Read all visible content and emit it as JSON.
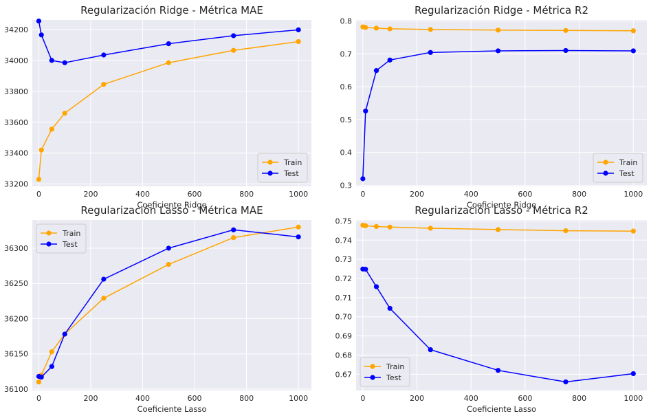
{
  "colors": {
    "train": "#ffa500",
    "test": "#0000ff",
    "background": "#eaeaf2",
    "grid": "#ffffff"
  },
  "chart_data": [
    {
      "type": "line",
      "title": "Regularización Ridge - Métrica MAE",
      "xlabel": "Coeficiente Ridge",
      "ylabel": "",
      "x": [
        0,
        10,
        50,
        100,
        250,
        500,
        750,
        1000
      ],
      "xlim": [
        -25,
        1050
      ],
      "ylim": [
        33185,
        34262
      ],
      "xticks": [
        0,
        200,
        400,
        600,
        800,
        1000
      ],
      "yticks": [
        33200,
        33400,
        33600,
        33800,
        34000,
        34200
      ],
      "ytick_decimals": 0,
      "legend": "lower right",
      "grid": true,
      "series": [
        {
          "name": "Train",
          "values": [
            33230,
            33420,
            33555,
            33658,
            33845,
            33985,
            34065,
            34122
          ]
        },
        {
          "name": "Test",
          "values": [
            34255,
            34165,
            34000,
            33985,
            34035,
            34108,
            34160,
            34198
          ]
        }
      ]
    },
    {
      "type": "line",
      "title": "Regularización Ridge - Métrica R2",
      "xlabel": "Coeficiente Ridge",
      "ylabel": "",
      "x": [
        0,
        10,
        50,
        100,
        250,
        500,
        750,
        1000
      ],
      "xlim": [
        -25,
        1050
      ],
      "ylim": [
        0.297,
        0.803
      ],
      "xticks": [
        0,
        200,
        400,
        600,
        800,
        1000
      ],
      "yticks": [
        0.3,
        0.4,
        0.5,
        0.6,
        0.7,
        0.8
      ],
      "ytick_decimals": 1,
      "legend": "lower right",
      "grid": true,
      "series": [
        {
          "name": "Train",
          "values": [
            0.782,
            0.78,
            0.778,
            0.776,
            0.774,
            0.772,
            0.771,
            0.77
          ]
        },
        {
          "name": "Test",
          "values": [
            0.32,
            0.526,
            0.649,
            0.681,
            0.704,
            0.709,
            0.71,
            0.709
          ]
        }
      ]
    },
    {
      "type": "line",
      "title": "Regularización Lasso - Métrica MAE",
      "xlabel": "Coeficiente Lasso",
      "ylabel": "",
      "x": [
        0,
        10,
        50,
        100,
        250,
        500,
        750,
        1000
      ],
      "xlim": [
        -25,
        1050
      ],
      "ylim": [
        36098,
        36340
      ],
      "xticks": [
        0,
        200,
        400,
        600,
        800,
        1000
      ],
      "yticks": [
        36100,
        36150,
        36200,
        36250,
        36300
      ],
      "ytick_decimals": 0,
      "legend": "upper left",
      "grid": true,
      "series": [
        {
          "name": "Train",
          "values": [
            36110,
            36120,
            36153,
            36178,
            36229,
            36277,
            36315,
            36330
          ]
        },
        {
          "name": "Test",
          "values": [
            36118,
            36117,
            36132,
            36178,
            36256,
            36300,
            36326,
            36316
          ]
        }
      ]
    },
    {
      "type": "line",
      "title": "Regularización Lasso - Métrica R2",
      "xlabel": "Coeficiente Lasso",
      "ylabel": "",
      "x": [
        0,
        10,
        50,
        100,
        250,
        500,
        750,
        1000
      ],
      "xlim": [
        -25,
        1050
      ],
      "ylim": [
        0.6615,
        0.7505
      ],
      "xticks": [
        0,
        200,
        400,
        600,
        800,
        1000
      ],
      "yticks": [
        0.67,
        0.68,
        0.69,
        0.7,
        0.71,
        0.72,
        0.73,
        0.74,
        0.75
      ],
      "ytick_decimals": 2,
      "legend": "lower left",
      "grid": true,
      "series": [
        {
          "name": "Train",
          "values": [
            0.7478,
            0.7475,
            0.7471,
            0.7468,
            0.7462,
            0.7455,
            0.7449,
            0.7447
          ]
        },
        {
          "name": "Test",
          "values": [
            0.7249,
            0.7248,
            0.7157,
            0.7044,
            0.6828,
            0.672,
            0.666,
            0.6703
          ]
        }
      ]
    }
  ]
}
